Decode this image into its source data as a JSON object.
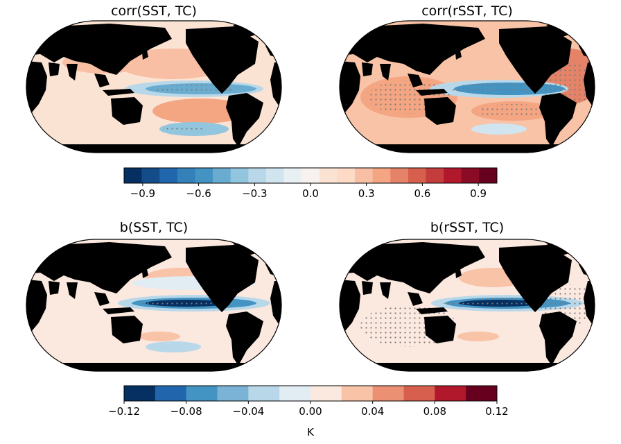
{
  "chart_data": [
    {
      "type": "heatmap",
      "title": "corr(SST, TC)",
      "projection": "Robinson world map",
      "field": "correlation of SST with TC index",
      "stippling": "significant regions (equatorial eastern Pacific cold tongue, southeast Pacific)",
      "pattern": "negative (blue) in equatorial central-eastern Pacific; positive (red) horseshoe in subtropical North and South Pacific",
      "shared_colorbar": "corr"
    },
    {
      "type": "heatmap",
      "title": "corr(rSST, TC)",
      "projection": "Robinson world map",
      "field": "correlation of relative SST with TC index",
      "stippling": "widespread over tropical oceans",
      "pattern": "negative (blue) in equatorial eastern Pacific; positive (red) across Indian Ocean, Atlantic and western Pacific",
      "shared_colorbar": "corr"
    },
    {
      "type": "heatmap",
      "title": "b(SST, TC)",
      "projection": "Robinson world map",
      "field": "regression coefficient of SST on TC index",
      "stippling": "equatorial eastern Pacific",
      "pattern": "strong negative (dark blue) narrow band along equatorial Pacific; weak positive elsewhere",
      "shared_colorbar": "regression"
    },
    {
      "type": "heatmap",
      "title": "b(rSST, TC)",
      "projection": "Robinson world map",
      "field": "regression coefficient of relative SST on TC index",
      "stippling": "equatorial Pacific, Indian Ocean and South Atlantic",
      "pattern": "strong negative (dark blue) band along equatorial Pacific; weak positive elsewhere",
      "shared_colorbar": "regression"
    }
  ],
  "colorbars": {
    "corr": {
      "range": [
        -1.0,
        1.0
      ],
      "levels": 20,
      "tick_values": [
        -0.9,
        -0.6,
        -0.3,
        0.0,
        0.3,
        0.6,
        0.9
      ],
      "tick_labels": [
        "−0.9",
        "−0.6",
        "−0.3",
        "0.0",
        "0.3",
        "0.6",
        "0.9"
      ],
      "label": "",
      "colors": [
        "#053061",
        "#134c88",
        "#2166ac",
        "#3480b9",
        "#4393c3",
        "#6aacd0",
        "#92c5de",
        "#b8d8e9",
        "#d1e5f0",
        "#e9f0f4",
        "#f7f2ef",
        "#fbe3d4",
        "#fddbc7",
        "#f8bfa4",
        "#f4a582",
        "#e58368",
        "#d6604d",
        "#c43c3c",
        "#b2182b",
        "#8a0b25",
        "#67001f"
      ]
    },
    "regression": {
      "range": [
        -0.12,
        0.12
      ],
      "levels": 12,
      "tick_values": [
        -0.12,
        -0.08,
        -0.04,
        0.0,
        0.04,
        0.08,
        0.12
      ],
      "tick_labels": [
        "−0.12",
        "−0.08",
        "−0.04",
        "0.00",
        "0.04",
        "0.08",
        "0.12"
      ],
      "label": "K",
      "colors": [
        "#053061",
        "#2166ac",
        "#4393c3",
        "#7ab3d5",
        "#b8d8e9",
        "#e2ecf3",
        "#fbe8df",
        "#f8c3a7",
        "#eb9072",
        "#d6604d",
        "#b2182b",
        "#67001f"
      ]
    }
  },
  "palette": {
    "land": "#000000",
    "stipple": "#7a7a7a"
  }
}
